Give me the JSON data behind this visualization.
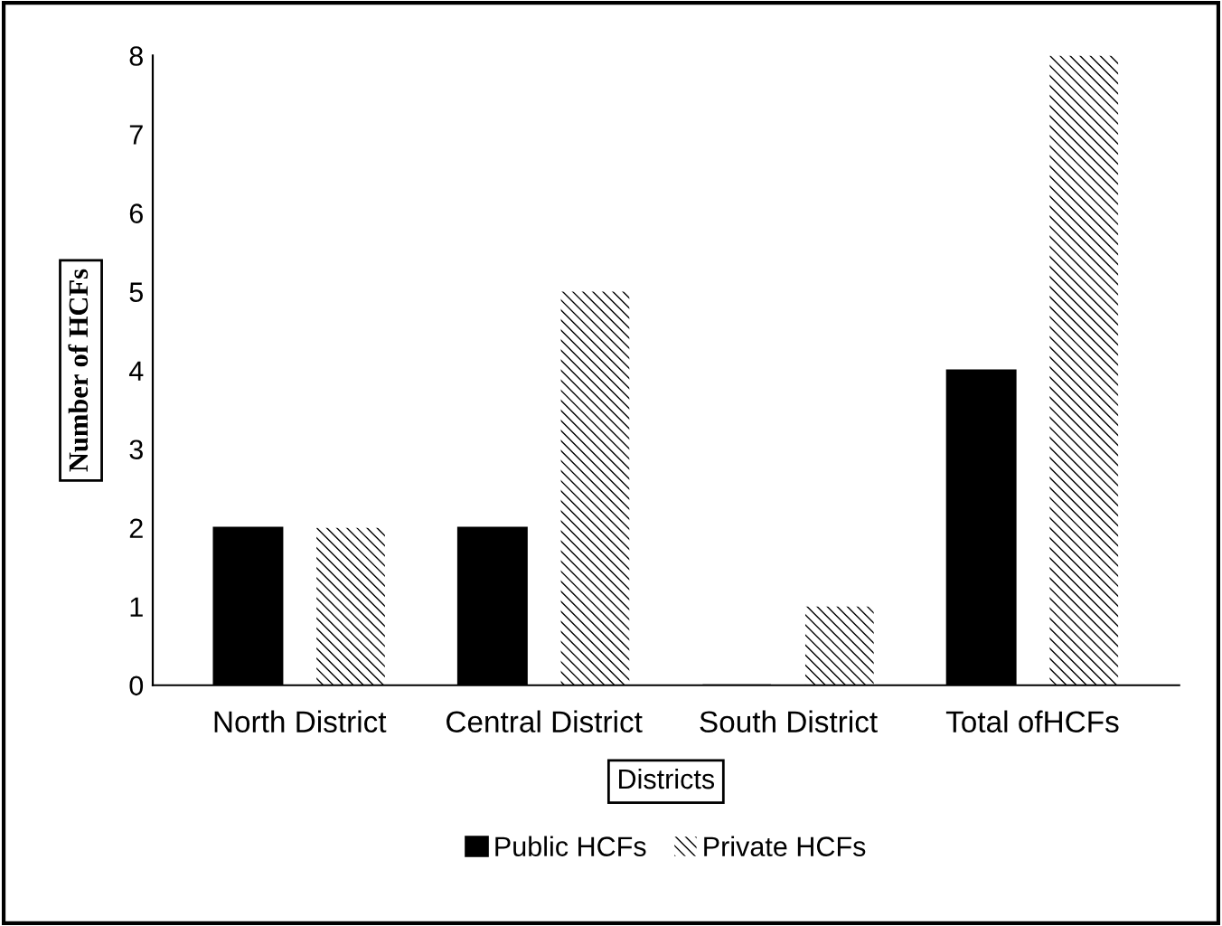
{
  "chart_data": {
    "type": "bar",
    "xlabel": "Districts",
    "ylabel": "Number of HCFs",
    "categories": [
      "North District",
      "Central District",
      "South District",
      "Total ofHCFs"
    ],
    "series": [
      {
        "name": "Public HCFs",
        "color": "#000000",
        "values": [
          2,
          2,
          0,
          4
        ]
      },
      {
        "name": "Private HCFs",
        "color": "#ffffff",
        "values": [
          2,
          5,
          1,
          8
        ]
      }
    ],
    "ylim": [
      0,
      8
    ],
    "yticks": [
      0,
      1,
      2,
      3,
      4,
      5,
      6,
      7,
      8
    ],
    "grid": false,
    "legend": "bottom"
  }
}
